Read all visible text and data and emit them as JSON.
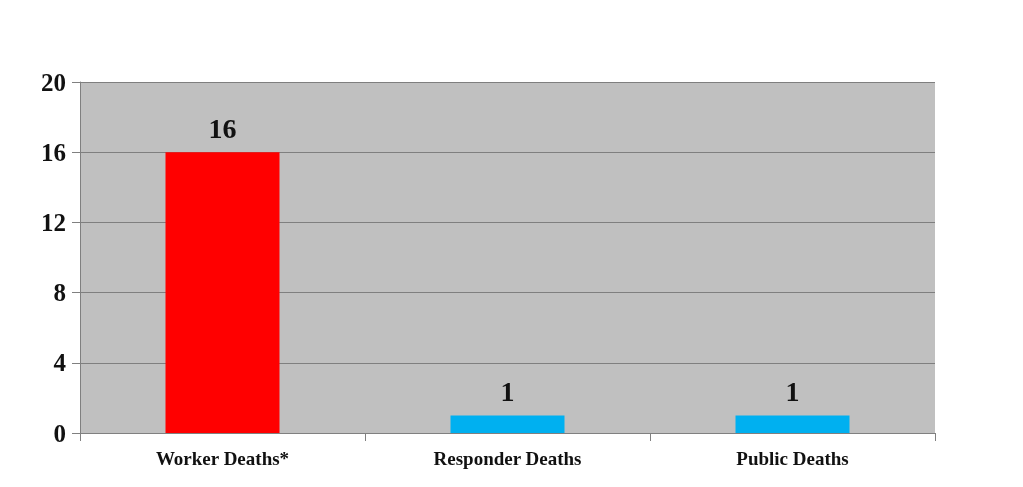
{
  "chart_data": {
    "type": "bar",
    "categories": [
      "Worker Deaths*",
      "Responder Deaths",
      "Public Deaths"
    ],
    "values": [
      16,
      1,
      1
    ],
    "colors": [
      "#ff0000",
      "#00b0f0",
      "#00b0f0"
    ],
    "ylim": [
      0,
      20
    ],
    "yticks": [
      0,
      4,
      8,
      12,
      16,
      20
    ],
    "grid": "y",
    "data_labels": true
  }
}
